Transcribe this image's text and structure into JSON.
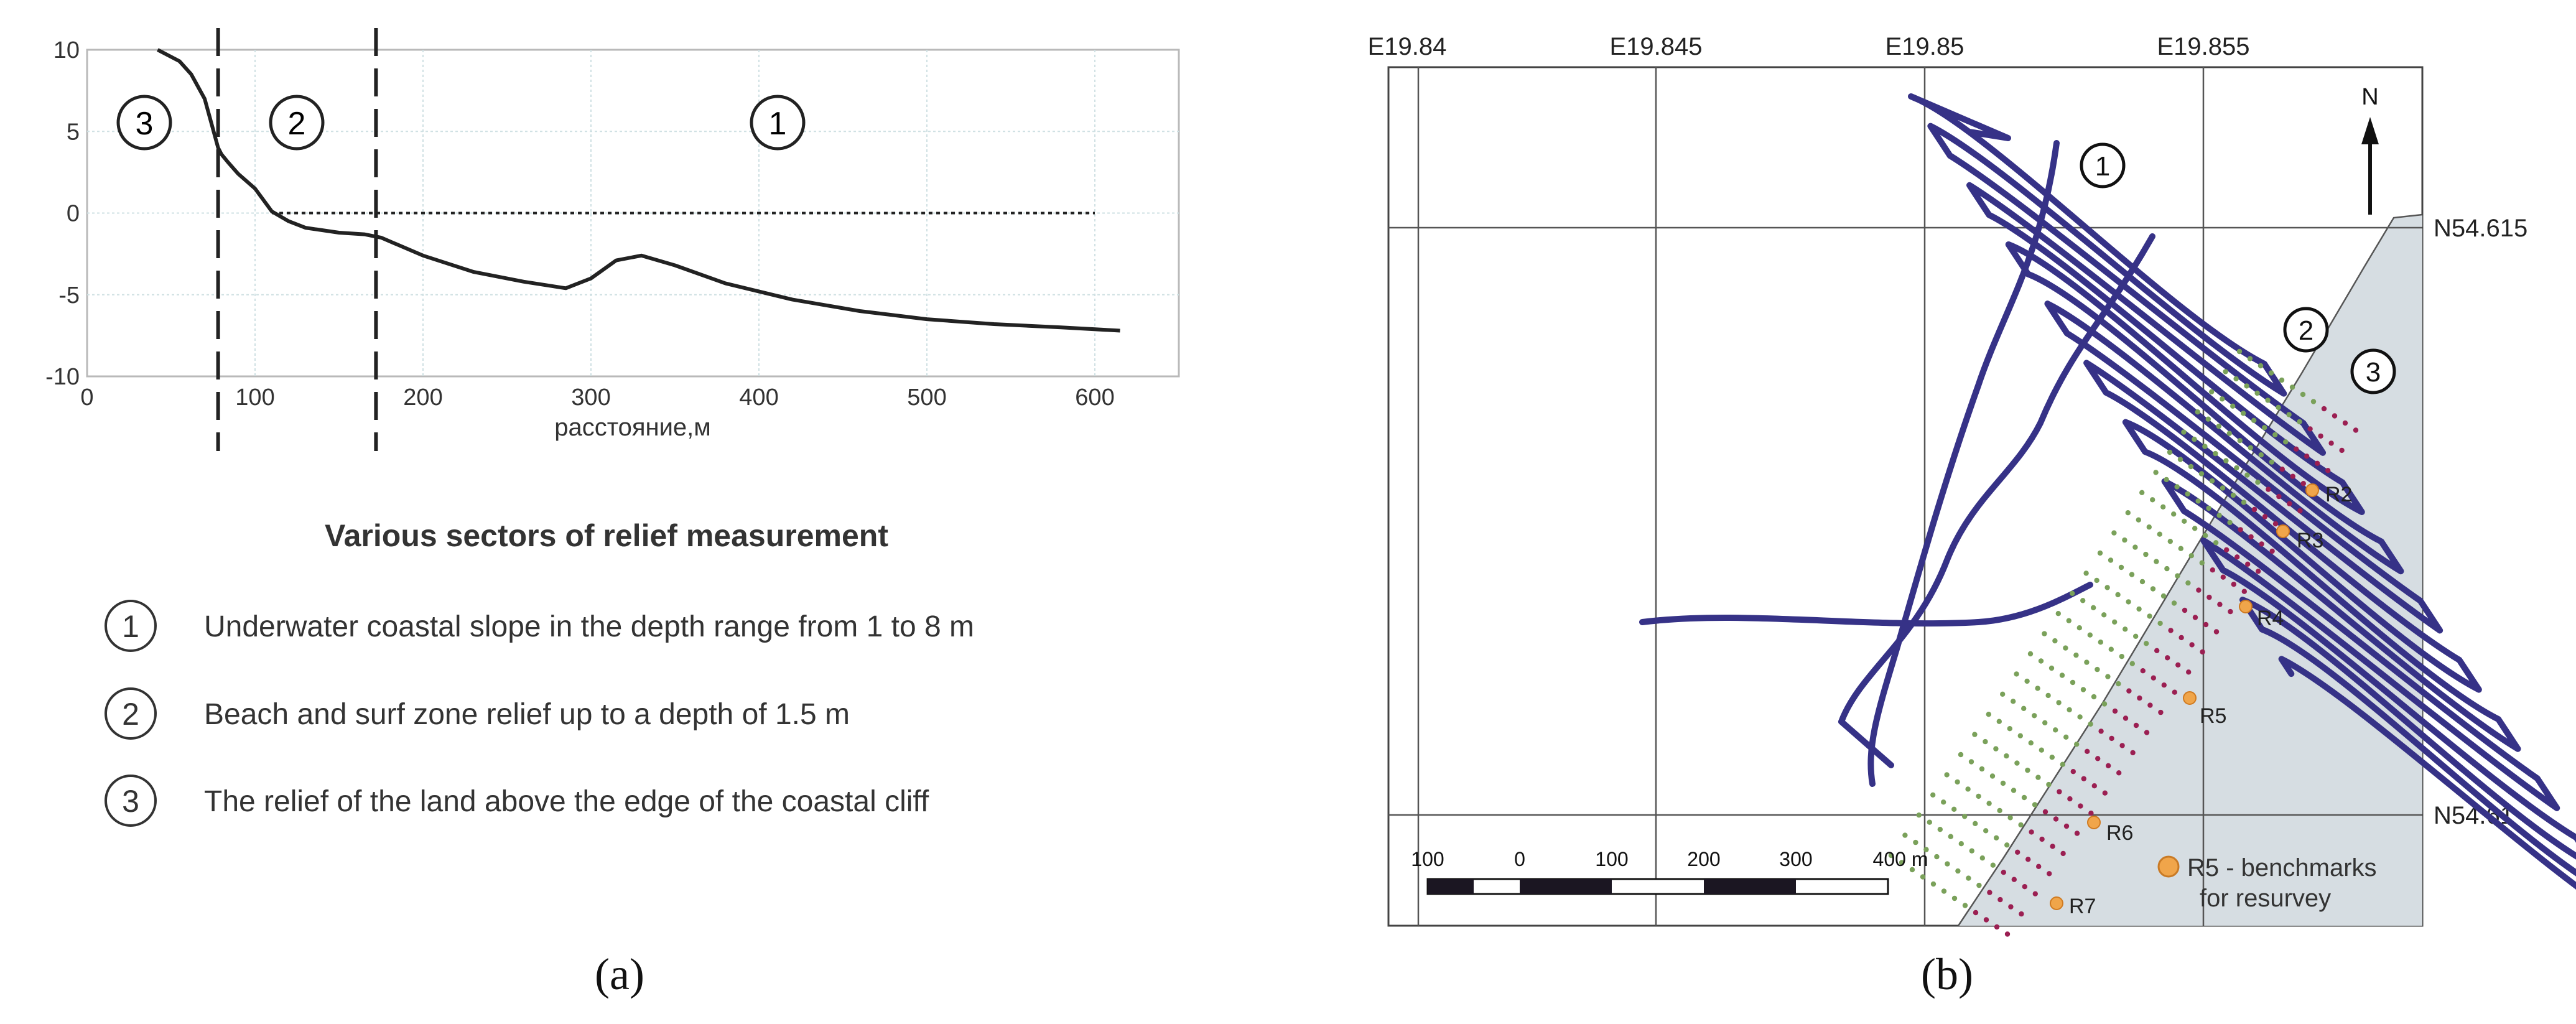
{
  "panel_a": {
    "letter": "(a)",
    "profile": {
      "xlabel": "расстояние,м",
      "x_ticks": [
        "0",
        "100",
        "200",
        "300",
        "400",
        "500",
        "600"
      ],
      "y_ticks": [
        "10",
        "5",
        "0",
        "-5",
        "-10"
      ],
      "zone_labels": [
        "3",
        "2",
        "1"
      ]
    },
    "legend": {
      "title": "Various sectors of relief measurement",
      "items": [
        {
          "num": "1",
          "text": "Underwater coastal slope in the depth range from 1 to 8 m"
        },
        {
          "num": "2",
          "text": "Beach and surf zone relief up to a depth of 1.5 m"
        },
        {
          "num": "3",
          "text": "The relief of the land above the edge of the coastal cliff"
        }
      ]
    }
  },
  "chart_data": {
    "type": "line",
    "title": "",
    "xlabel": "расстояние,м",
    "ylabel": "",
    "xlim": [
      0,
      650
    ],
    "ylim": [
      -10,
      10
    ],
    "grid": true,
    "profile_x": [
      42,
      55,
      62,
      70,
      74,
      78,
      80,
      84,
      90,
      100,
      110,
      120,
      130,
      150,
      165,
      175,
      200,
      230,
      260,
      285,
      300,
      315,
      330,
      350,
      380,
      420,
      460,
      500,
      540,
      580,
      615
    ],
    "profile_y": [
      10,
      9.3,
      8.5,
      7.0,
      5.5,
      4.0,
      3.6,
      3.1,
      2.4,
      1.5,
      0.1,
      -0.5,
      -0.9,
      -1.2,
      -1.3,
      -1.5,
      -2.6,
      -3.6,
      -4.2,
      -4.6,
      -4.0,
      -2.9,
      -2.6,
      -3.2,
      -4.3,
      -5.3,
      -6.0,
      -6.5,
      -6.8,
      -7.0,
      -7.2
    ],
    "sea_level": {
      "x_start": 110,
      "x_end": 600,
      "y": 0
    },
    "boundaries_x": [
      78,
      172
    ]
  },
  "panel_b": {
    "letter": "(b)",
    "lon_labels": [
      "E19.84",
      "E19.845",
      "E19.85",
      "E19.855"
    ],
    "lat_labels": [
      "N54.615",
      "N54.61"
    ],
    "north": "N",
    "zone_labels": [
      "1",
      "2",
      "3"
    ],
    "benchmarks": [
      "R2",
      "R3",
      "R4",
      "R5",
      "R6",
      "R7"
    ],
    "scalebar_labels": [
      "100",
      "0",
      "100",
      "200",
      "300",
      "400 m"
    ],
    "legend_line1": "R5 - benchmarks",
    "legend_line2": "for resurvey",
    "colors": {
      "track": "#363287",
      "land": "#d6dde2",
      "beach_points": "#7aa15a",
      "cliff_points": "#9b1f52",
      "benchmark": "#f0a54a"
    }
  }
}
